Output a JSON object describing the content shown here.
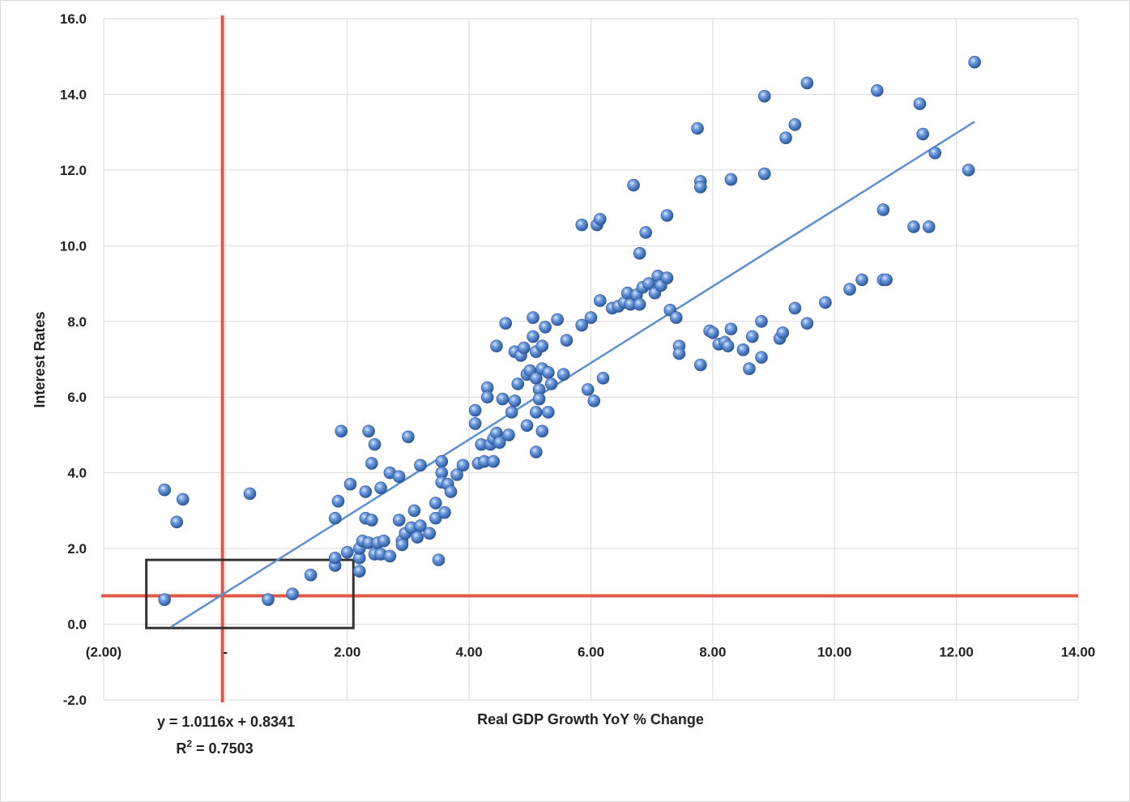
{
  "chart_data": {
    "type": "scatter",
    "xlabel": "Real GDP Growth YoY % Change",
    "ylabel": "Interest Rates",
    "xlim": [
      -2,
      14
    ],
    "ylim": [
      -2,
      16
    ],
    "x_ticks": [
      -2,
      0,
      2,
      4,
      6,
      8,
      10,
      12,
      14
    ],
    "x_tick_labels": [
      "(2.00)",
      "-",
      "2.00",
      "4.00",
      "6.00",
      "8.00",
      "10.00",
      "12.00",
      "14.00"
    ],
    "y_ticks": [
      -2,
      0,
      2,
      4,
      6,
      8,
      10,
      12,
      14,
      16
    ],
    "y_tick_labels": [
      "-2.0",
      "0.0",
      "2.0",
      "4.0",
      "6.0",
      "8.0",
      "10.0",
      "12.0",
      "14.0",
      "16.0"
    ],
    "grid": true,
    "marker_color": "#3d6fb6",
    "trendline": {
      "type": "linear",
      "slope": 1.0116,
      "intercept": 0.8341,
      "x_range": [
        -0.9,
        12.3
      ],
      "color": "#5b8fd0",
      "equation": "y = 1.0116x + 0.8341",
      "r_squared_prefix": "R",
      "r_squared_exp": "2",
      "r_squared_value": " = 0.7503"
    },
    "reference_lines": [
      {
        "orientation": "vertical",
        "x": -0.05,
        "color": "#e0584a"
      },
      {
        "orientation": "horizontal",
        "y": 0.75,
        "color": "#e0584a"
      }
    ],
    "highlight_box": {
      "x_range": [
        -1.3,
        2.1
      ],
      "y_range": [
        -0.1,
        1.7
      ],
      "color": "#333333"
    },
    "points": [
      [
        -1.0,
        3.55
      ],
      [
        -0.7,
        3.3
      ],
      [
        -0.8,
        2.7
      ],
      [
        -1.0,
        0.65
      ],
      [
        0.4,
        3.45
      ],
      [
        0.7,
        0.65
      ],
      [
        1.1,
        0.8
      ],
      [
        1.4,
        1.3
      ],
      [
        1.8,
        1.55
      ],
      [
        1.8,
        1.75
      ],
      [
        1.8,
        2.8
      ],
      [
        1.85,
        3.25
      ],
      [
        1.9,
        5.1
      ],
      [
        2.0,
        1.9
      ],
      [
        2.05,
        3.7
      ],
      [
        2.2,
        1.4
      ],
      [
        2.2,
        1.75
      ],
      [
        2.2,
        2.0
      ],
      [
        2.25,
        2.2
      ],
      [
        2.3,
        2.8
      ],
      [
        2.3,
        3.5
      ],
      [
        2.35,
        2.15
      ],
      [
        2.35,
        5.1
      ],
      [
        2.4,
        2.75
      ],
      [
        2.4,
        4.25
      ],
      [
        2.45,
        4.75
      ],
      [
        2.45,
        1.85
      ],
      [
        2.5,
        2.15
      ],
      [
        2.55,
        3.6
      ],
      [
        2.55,
        1.85
      ],
      [
        2.6,
        2.2
      ],
      [
        2.7,
        1.8
      ],
      [
        2.7,
        4.0
      ],
      [
        2.85,
        3.9
      ],
      [
        2.85,
        2.75
      ],
      [
        2.9,
        2.2
      ],
      [
        2.9,
        2.1
      ],
      [
        2.95,
        2.4
      ],
      [
        3.0,
        4.95
      ],
      [
        3.05,
        2.55
      ],
      [
        3.1,
        3.0
      ],
      [
        3.15,
        2.3
      ],
      [
        3.2,
        2.6
      ],
      [
        3.2,
        4.2
      ],
      [
        3.35,
        2.4
      ],
      [
        3.45,
        2.8
      ],
      [
        3.45,
        3.2
      ],
      [
        3.5,
        1.7
      ],
      [
        3.55,
        4.3
      ],
      [
        3.55,
        4.0
      ],
      [
        3.55,
        3.75
      ],
      [
        3.6,
        2.95
      ],
      [
        3.65,
        3.7
      ],
      [
        3.7,
        3.5
      ],
      [
        3.8,
        3.95
      ],
      [
        3.9,
        4.2
      ],
      [
        4.1,
        5.65
      ],
      [
        4.1,
        5.3
      ],
      [
        4.15,
        4.25
      ],
      [
        4.2,
        4.75
      ],
      [
        4.25,
        4.3
      ],
      [
        4.3,
        6.25
      ],
      [
        4.3,
        6.0
      ],
      [
        4.35,
        4.75
      ],
      [
        4.4,
        4.3
      ],
      [
        4.4,
        4.9
      ],
      [
        4.45,
        5.05
      ],
      [
        4.45,
        7.35
      ],
      [
        4.5,
        4.8
      ],
      [
        4.55,
        5.95
      ],
      [
        4.6,
        7.95
      ],
      [
        4.65,
        5.0
      ],
      [
        4.7,
        5.6
      ],
      [
        4.75,
        5.9
      ],
      [
        4.75,
        7.2
      ],
      [
        4.8,
        6.35
      ],
      [
        4.85,
        7.1
      ],
      [
        4.9,
        7.3
      ],
      [
        4.95,
        5.25
      ],
      [
        4.95,
        6.6
      ],
      [
        5.0,
        6.7
      ],
      [
        5.05,
        8.1
      ],
      [
        5.05,
        7.6
      ],
      [
        5.1,
        7.2
      ],
      [
        5.1,
        6.5
      ],
      [
        5.1,
        5.6
      ],
      [
        5.1,
        4.55
      ],
      [
        5.15,
        6.2
      ],
      [
        5.15,
        5.95
      ],
      [
        5.2,
        7.35
      ],
      [
        5.2,
        6.75
      ],
      [
        5.2,
        5.1
      ],
      [
        5.25,
        7.85
      ],
      [
        5.3,
        6.65
      ],
      [
        5.3,
        5.6
      ],
      [
        5.35,
        6.35
      ],
      [
        5.45,
        8.05
      ],
      [
        5.55,
        6.6
      ],
      [
        5.6,
        7.5
      ],
      [
        5.85,
        10.55
      ],
      [
        5.85,
        7.9
      ],
      [
        5.95,
        6.2
      ],
      [
        6.0,
        8.1
      ],
      [
        6.05,
        5.9
      ],
      [
        6.1,
        10.55
      ],
      [
        6.15,
        10.7
      ],
      [
        6.15,
        8.55
      ],
      [
        6.2,
        6.5
      ],
      [
        6.35,
        8.35
      ],
      [
        6.45,
        8.4
      ],
      [
        6.55,
        8.5
      ],
      [
        6.6,
        8.75
      ],
      [
        6.65,
        8.45
      ],
      [
        6.7,
        11.6
      ],
      [
        6.75,
        8.7
      ],
      [
        6.8,
        8.45
      ],
      [
        6.8,
        9.8
      ],
      [
        6.85,
        8.9
      ],
      [
        6.9,
        10.35
      ],
      [
        6.95,
        9.0
      ],
      [
        7.05,
        8.75
      ],
      [
        7.1,
        9.2
      ],
      [
        7.15,
        8.95
      ],
      [
        7.25,
        9.15
      ],
      [
        7.25,
        10.8
      ],
      [
        7.3,
        8.3
      ],
      [
        7.4,
        8.1
      ],
      [
        7.45,
        7.35
      ],
      [
        7.45,
        7.15
      ],
      [
        7.75,
        13.1
      ],
      [
        7.8,
        6.85
      ],
      [
        7.8,
        11.7
      ],
      [
        7.8,
        11.55
      ],
      [
        7.95,
        7.75
      ],
      [
        8.0,
        7.7
      ],
      [
        8.1,
        7.4
      ],
      [
        8.2,
        7.45
      ],
      [
        8.25,
        7.35
      ],
      [
        8.3,
        7.8
      ],
      [
        8.3,
        11.75
      ],
      [
        8.5,
        7.25
      ],
      [
        8.6,
        6.75
      ],
      [
        8.65,
        7.6
      ],
      [
        8.8,
        7.05
      ],
      [
        8.8,
        8.0
      ],
      [
        8.85,
        13.95
      ],
      [
        8.85,
        11.9
      ],
      [
        9.1,
        7.55
      ],
      [
        9.15,
        7.7
      ],
      [
        9.2,
        12.85
      ],
      [
        9.35,
        8.35
      ],
      [
        9.35,
        13.2
      ],
      [
        9.55,
        14.3
      ],
      [
        9.55,
        7.95
      ],
      [
        9.85,
        8.5
      ],
      [
        10.25,
        8.85
      ],
      [
        10.45,
        9.1
      ],
      [
        10.7,
        14.1
      ],
      [
        10.8,
        9.1
      ],
      [
        10.8,
        10.95
      ],
      [
        10.85,
        9.1
      ],
      [
        11.3,
        10.5
      ],
      [
        11.4,
        13.75
      ],
      [
        11.45,
        12.95
      ],
      [
        11.55,
        10.5
      ],
      [
        11.65,
        12.45
      ],
      [
        12.2,
        12.0
      ],
      [
        12.3,
        14.85
      ]
    ]
  }
}
